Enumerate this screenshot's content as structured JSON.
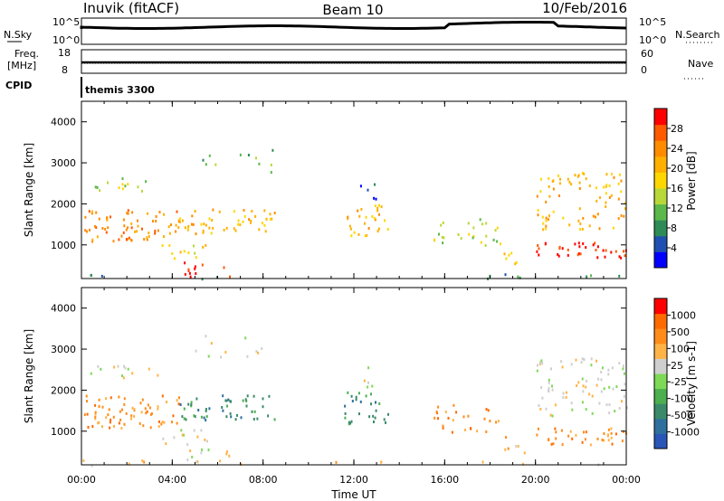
{
  "header": {
    "station": "Inuvik (fitACF)",
    "beam": "Beam 10",
    "date": "10/Feb/2016"
  },
  "summary_panels": {
    "nsky_label": "N.Sky",
    "nsky_top": "10^5",
    "nsky_bottom": "10^0",
    "nsearch_label": "N.Search",
    "nsearch_top": "10^5",
    "nsearch_bottom": "10^0",
    "freq_label_1": "Freq.",
    "freq_label_2": "[MHz]",
    "freq_top": "18",
    "freq_bottom": "8",
    "nave_label": "Nave",
    "nave_top": "60",
    "nave_bottom": "0",
    "cpid_label": "CPID",
    "cpid_value": "themis 3300"
  },
  "colorbars": {
    "power": {
      "title": "Power [dB]",
      "labels": [
        "4",
        "8",
        "12",
        "16",
        "20",
        "24",
        "28"
      ],
      "colors": [
        "#0000ff",
        "#1f4fb0",
        "#2e8b57",
        "#5bb84a",
        "#b8d83a",
        "#ffd700",
        "#ffb000",
        "#ff8c00",
        "#ff5a00",
        "#ff0000"
      ]
    },
    "velocity": {
      "title": "Velocity [m s-1]",
      "labels": [
        "1000",
        "500",
        "100",
        "25",
        "-25",
        "-100",
        "-500",
        "-1000"
      ],
      "colors": [
        "#2a55b8",
        "#2e6f9e",
        "#3a8a6a",
        "#4caf50",
        "#7ed957",
        "#cfcfcf",
        "#ffb347",
        "#ff8c1a",
        "#ff6a00",
        "#ff0000"
      ]
    }
  },
  "chart_data": [
    {
      "type": "heatmap",
      "title": "Power",
      "ylabel": "Slant Range [km]",
      "xlabel": "Time UT",
      "xlim": [
        "00:00",
        "00:00"
      ],
      "ylim": [
        180,
        4500
      ],
      "x_ticks": [
        "00:00",
        "04:00",
        "08:00",
        "12:00",
        "16:00",
        "20:00",
        "00:00"
      ],
      "y_ticks": [
        "1000",
        "2000",
        "3000",
        "4000"
      ],
      "scale_title": "Power [dB]",
      "scale_labels": [
        "4",
        "8",
        "12",
        "16",
        "20",
        "24",
        "28"
      ]
    },
    {
      "type": "heatmap",
      "title": "Velocity",
      "ylabel": "Slant Range [km]",
      "xlabel": "Time UT",
      "xlim": [
        "00:00",
        "00:00"
      ],
      "ylim": [
        180,
        4500
      ],
      "x_ticks": [
        "00:00",
        "04:00",
        "08:00",
        "12:00",
        "16:00",
        "20:00",
        "00:00"
      ],
      "y_ticks": [
        "1000",
        "2000",
        "3000",
        "4000"
      ],
      "scale_title": "Velocity [m s-1]",
      "scale_labels": [
        "1000",
        "500",
        "100",
        "25",
        "-25",
        "-100",
        "-500",
        "-1000"
      ]
    }
  ]
}
